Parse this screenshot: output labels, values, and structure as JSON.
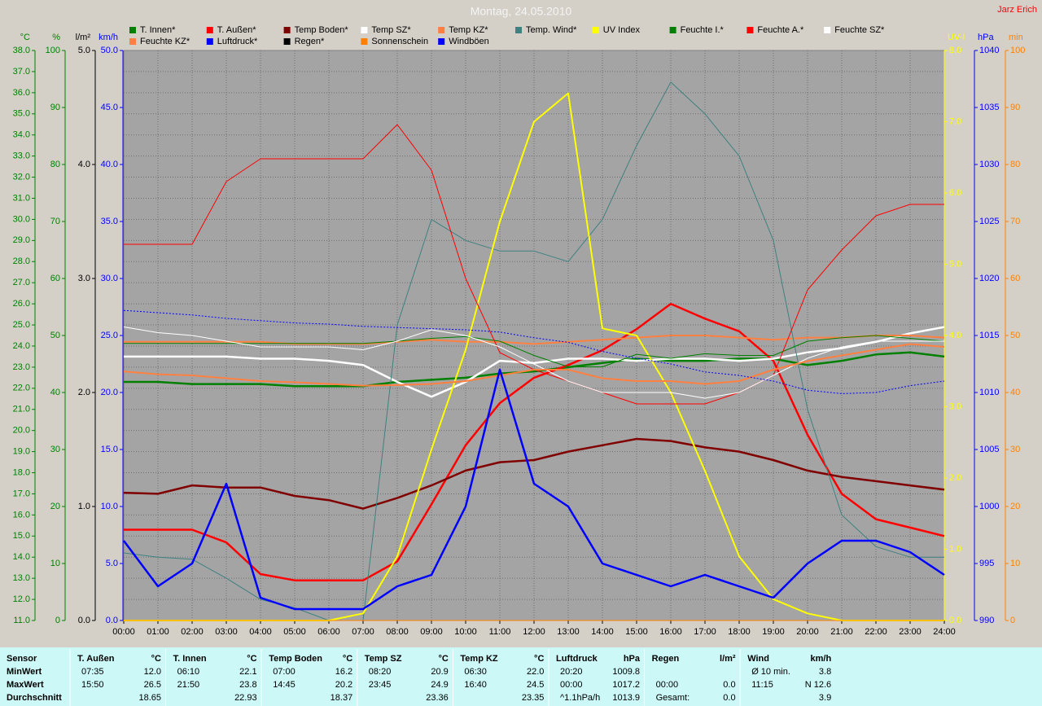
{
  "chart_data": {
    "type": "line",
    "title": "Montag, 24.05.2010",
    "author": "Jarz Erich",
    "background": "#a4a4a4",
    "grid": true,
    "x": [
      0,
      1,
      2,
      3,
      4,
      5,
      6,
      7,
      8,
      9,
      10,
      11,
      12,
      13,
      14,
      15,
      16,
      17,
      18,
      19,
      20,
      21,
      22,
      23,
      24
    ],
    "xlim": [
      0,
      24
    ],
    "xticks": [
      {
        "value": 0,
        "label": "00:00"
      },
      {
        "value": 1,
        "label": "01:00"
      },
      {
        "value": 2,
        "label": "02:00"
      },
      {
        "value": 3,
        "label": "03:00"
      },
      {
        "value": 4,
        "label": "04:00"
      },
      {
        "value": 5,
        "label": "05:00"
      },
      {
        "value": 6,
        "label": "06:00"
      },
      {
        "value": 7,
        "label": "07:00"
      },
      {
        "value": 8,
        "label": "08:00"
      },
      {
        "value": 9,
        "label": "09:00"
      },
      {
        "value": 10,
        "label": "10:00"
      },
      {
        "value": 11,
        "label": "11:00"
      },
      {
        "value": 12,
        "label": "12:00"
      },
      {
        "value": 13,
        "label": "13:00"
      },
      {
        "value": 14,
        "label": "14:00"
      },
      {
        "value": 15,
        "label": "15:00"
      },
      {
        "value": 16,
        "label": "16:00"
      },
      {
        "value": 17,
        "label": "17:00"
      },
      {
        "value": 18,
        "label": "18:00"
      },
      {
        "value": 19,
        "label": "19:00"
      },
      {
        "value": 20,
        "label": "20:00"
      },
      {
        "value": 21,
        "label": "21:00"
      },
      {
        "value": 22,
        "label": "22:00"
      },
      {
        "value": 23,
        "label": "23:00"
      },
      {
        "value": 24,
        "label": "24:00"
      }
    ],
    "axes": [
      {
        "unit": "°C",
        "side": "left",
        "color": "#008000",
        "grid": true,
        "lim": [
          11,
          38
        ],
        "ticks": [
          {
            "value": 11,
            "label": "11.0"
          },
          {
            "value": 12,
            "label": "12.0"
          },
          {
            "value": 13,
            "label": "13.0"
          },
          {
            "value": 14,
            "label": "14.0"
          },
          {
            "value": 15,
            "label": "15.0"
          },
          {
            "value": 16,
            "label": "16.0"
          },
          {
            "value": 17,
            "label": "17.0"
          },
          {
            "value": 18,
            "label": "18.0"
          },
          {
            "value": 19,
            "label": "19.0"
          },
          {
            "value": 20,
            "label": "20.0"
          },
          {
            "value": 21,
            "label": "21.0"
          },
          {
            "value": 22,
            "label": "22.0"
          },
          {
            "value": 23,
            "label": "23.0"
          },
          {
            "value": 24,
            "label": "24.0"
          },
          {
            "value": 25,
            "label": "25.0"
          },
          {
            "value": 26,
            "label": "26.0"
          },
          {
            "value": 27,
            "label": "27.0"
          },
          {
            "value": 28,
            "label": "28.0"
          },
          {
            "value": 29,
            "label": "29.0"
          },
          {
            "value": 30,
            "label": "30.0"
          },
          {
            "value": 31,
            "label": "31.0"
          },
          {
            "value": 32,
            "label": "32.0"
          },
          {
            "value": 33,
            "label": "33.0"
          },
          {
            "value": 34,
            "label": "34.0"
          },
          {
            "value": 35,
            "label": "35.0"
          },
          {
            "value": 36,
            "label": "36.0"
          },
          {
            "value": 37,
            "label": "37.0"
          },
          {
            "value": 38,
            "label": "38.0"
          }
        ]
      },
      {
        "unit": "%",
        "side": "left",
        "color": "#008000",
        "lim": [
          0,
          100
        ],
        "ticks": [
          0,
          10,
          20,
          30,
          40,
          50,
          60,
          70,
          80,
          90,
          100
        ]
      },
      {
        "unit": "l/m²",
        "side": "left",
        "color": "#000000",
        "lim": [
          0,
          5
        ],
        "ticks": [
          {
            "value": 0,
            "label": "0.0"
          },
          {
            "value": 1,
            "label": "1.0"
          },
          {
            "value": 2,
            "label": "2.0"
          },
          {
            "value": 3,
            "label": "3.0"
          },
          {
            "value": 4,
            "label": "4.0"
          },
          {
            "value": 5,
            "label": "5.0"
          }
        ]
      },
      {
        "unit": "km/h",
        "side": "left",
        "color": "#0000ff",
        "lim": [
          0,
          50
        ],
        "ticks": [
          {
            "value": 0,
            "label": "0.0"
          },
          {
            "value": 5,
            "label": "5.0"
          },
          {
            "value": 10,
            "label": "10.0"
          },
          {
            "value": 15,
            "label": "15.0"
          },
          {
            "value": 20,
            "label": "20.0"
          },
          {
            "value": 25,
            "label": "25.0"
          },
          {
            "value": 30,
            "label": "30.0"
          },
          {
            "value": 35,
            "label": "35.0"
          },
          {
            "value": 40,
            "label": "40.0"
          },
          {
            "value": 45,
            "label": "45.0"
          },
          {
            "value": 50,
            "label": "50.0"
          }
        ]
      },
      {
        "unit": "UV-I",
        "side": "right",
        "color": "#ffff00",
        "lim": [
          0,
          8
        ],
        "ticks": [
          {
            "value": 0,
            "label": "0.0"
          },
          {
            "value": 1,
            "label": "1.0"
          },
          {
            "value": 2,
            "label": "2.0"
          },
          {
            "value": 3,
            "label": "3.0"
          },
          {
            "value": 4,
            "label": "4.0"
          },
          {
            "value": 5,
            "label": "5.0"
          },
          {
            "value": 6,
            "label": "6.0"
          },
          {
            "value": 7,
            "label": "7.0"
          },
          {
            "value": 8,
            "label": "8.0"
          }
        ]
      },
      {
        "unit": "hPa",
        "side": "right",
        "color": "#0000ff",
        "lim": [
          990,
          1040
        ],
        "ticks": [
          990,
          995,
          1000,
          1005,
          1010,
          1015,
          1020,
          1025,
          1030,
          1035,
          1040
        ]
      },
      {
        "unit": "min",
        "side": "right",
        "color": "#ff8000",
        "lim": [
          0,
          100
        ],
        "ticks": [
          0,
          10,
          20,
          30,
          40,
          50,
          60,
          70,
          80,
          90,
          100
        ]
      }
    ],
    "series": [
      {
        "name": "T. Innen*",
        "axis": "°C",
        "color": "#008000",
        "line_width": 2.5,
        "values": [
          22.3,
          22.3,
          22.2,
          22.2,
          22.2,
          22.1,
          22.1,
          22.1,
          22.3,
          22.4,
          22.5,
          22.7,
          22.8,
          23.0,
          23.2,
          23.4,
          23.3,
          23.3,
          23.4,
          23.4,
          23.1,
          23.3,
          23.6,
          23.7,
          23.5
        ]
      },
      {
        "name": "T. Außen*",
        "axis": "°C",
        "color": "#ff0000",
        "line_width": 2.5,
        "values": [
          15.3,
          15.3,
          15.3,
          14.7,
          13.2,
          12.9,
          12.9,
          12.9,
          13.8,
          16.5,
          19.3,
          21.3,
          22.5,
          23.1,
          23.8,
          24.8,
          26.0,
          25.3,
          24.7,
          23.3,
          19.8,
          17.0,
          15.8,
          15.4,
          15.0
        ]
      },
      {
        "name": "Temp Boden*",
        "axis": "°C",
        "color": "#800000",
        "line_width": 2.5,
        "values": [
          17.05,
          17.0,
          17.4,
          17.3,
          17.3,
          16.9,
          16.7,
          16.3,
          16.8,
          17.4,
          18.1,
          18.5,
          18.6,
          19.0,
          19.3,
          19.6,
          19.5,
          19.2,
          19.0,
          18.6,
          18.1,
          17.8,
          17.6,
          17.4,
          17.2
        ]
      },
      {
        "name": "Temp SZ*",
        "axis": "°C",
        "color": "#ffffff",
        "line_width": 2.5,
        "values": [
          23.5,
          23.5,
          23.5,
          23.5,
          23.4,
          23.4,
          23.3,
          23.1,
          22.3,
          21.6,
          22.3,
          23.3,
          23.2,
          23.4,
          23.4,
          23.3,
          23.4,
          23.4,
          23.3,
          23.4,
          23.7,
          23.9,
          24.2,
          24.6,
          24.9
        ]
      },
      {
        "name": "Temp KZ*",
        "axis": "°C",
        "color": "#ff8040",
        "line_width": 2,
        "values": [
          24.2,
          24.2,
          24.2,
          24.2,
          24.2,
          24.1,
          24.1,
          24.1,
          24.2,
          24.3,
          24.2,
          24.2,
          24.1,
          24.2,
          24.3,
          24.4,
          24.5,
          24.5,
          24.4,
          24.3,
          24.4,
          24.4,
          24.5,
          24.5,
          24.4
        ]
      },
      {
        "name": "Temp. Wind*",
        "axis": "°C",
        "color": "#408080",
        "line_width": 1,
        "values": [
          14.2,
          14.0,
          13.9,
          13.0,
          12.0,
          11.6,
          11.0,
          11.0,
          25.0,
          30.0,
          29.0,
          28.5,
          28.5,
          28.0,
          30.0,
          33.5,
          36.5,
          35.0,
          33.0,
          29.0,
          21.0,
          16.0,
          14.5,
          14.0,
          14.0
        ]
      },
      {
        "name": "UV Index",
        "axis": "UV-I",
        "color": "#ffff00",
        "line_width": 2,
        "values": [
          0,
          0,
          0,
          0,
          0,
          0,
          0,
          0.1,
          0.9,
          2.4,
          3.8,
          5.6,
          7.0,
          7.4,
          4.1,
          4.0,
          3.2,
          2.1,
          0.9,
          0.3,
          0.1,
          0,
          0,
          0,
          0
        ]
      },
      {
        "name": "Feuchte I.*",
        "axis": "%",
        "color": "#008000",
        "line_width": 1,
        "values": [
          48.6,
          48.6,
          48.6,
          48.6,
          48.6,
          48.6,
          48.6,
          48.6,
          49.0,
          49.5,
          49.8,
          49.0,
          46.5,
          44.5,
          44.5,
          46.7,
          46.0,
          46.8,
          46.5,
          46.5,
          49.0,
          49.6,
          50.0,
          49.5,
          49.0
        ]
      },
      {
        "name": "Feuchte A.*",
        "axis": "%",
        "color": "#ff0000",
        "line_width": 1,
        "values": [
          66,
          66,
          66,
          77,
          81,
          81,
          81,
          81,
          87,
          79,
          60,
          47,
          44,
          42,
          40,
          38,
          38,
          38,
          40,
          43,
          58,
          65,
          71,
          73,
          73
        ]
      },
      {
        "name": "Feuchte SZ*",
        "axis": "%",
        "color": "#ffffff",
        "line_width": 1,
        "values": [
          51.5,
          50.5,
          50,
          49,
          48,
          48,
          48,
          47.5,
          49,
          51,
          50,
          48,
          45,
          42,
          40,
          40,
          40,
          39,
          40,
          43,
          46,
          48,
          49,
          49,
          49
        ]
      },
      {
        "name": "Feuchte KZ*",
        "axis": "%",
        "color": "#ff8040",
        "line_width": 2,
        "values": [
          43.7,
          43.2,
          43,
          42.5,
          42,
          41.8,
          41.5,
          41.2,
          41.3,
          41.5,
          42,
          43,
          44,
          44,
          42.5,
          42,
          42,
          41.5,
          42,
          44,
          45.5,
          46.5,
          47.5,
          48.5,
          48
        ]
      },
      {
        "name": "Luftdruck*",
        "axis": "hPa",
        "color": "#0000ff",
        "line_width": 1,
        "dash": true,
        "values": [
          1017.2,
          1017,
          1016.8,
          1016.5,
          1016.3,
          1016.1,
          1016,
          1015.8,
          1015.7,
          1015.6,
          1015.5,
          1015.3,
          1014.8,
          1014.4,
          1013.6,
          1013,
          1012.5,
          1011.8,
          1011.5,
          1011,
          1010.2,
          1009.9,
          1010,
          1010.6,
          1011
        ]
      },
      {
        "name": "Regen*",
        "axis": "l/m²",
        "color": "#000000",
        "line_width": 1,
        "values": [
          0,
          0,
          0,
          0,
          0,
          0,
          0,
          0,
          0,
          0,
          0,
          0,
          0,
          0,
          0,
          0,
          0,
          0,
          0,
          0,
          0,
          0,
          0,
          0,
          0
        ]
      },
      {
        "name": "Sonnenschein",
        "axis": "min",
        "color": "#ff8000",
        "line_width": 1,
        "values": [
          0,
          0,
          0,
          0,
          0,
          0,
          0,
          0,
          0,
          0,
          0,
          0,
          0,
          0,
          0,
          0,
          0,
          0,
          0,
          0,
          0,
          0,
          0,
          0,
          0
        ]
      },
      {
        "name": "Windböen",
        "axis": "km/h",
        "color": "#0000ff",
        "line_width": 2.5,
        "values": [
          7,
          3,
          5,
          12,
          2,
          1,
          1,
          1,
          3,
          4,
          10,
          22,
          12,
          10,
          5,
          4,
          3,
          4,
          3,
          2,
          5,
          7,
          7,
          6,
          4
        ]
      }
    ]
  },
  "table": {
    "row_labels": [
      "Sensor",
      "MinWert",
      "MaxWert",
      "Durchschnitt"
    ],
    "columns": [
      {
        "name": "T. Außen",
        "unit": "°C",
        "rows": [
          {
            "time": "07:35",
            "value": "12.0"
          },
          {
            "time": "15:50",
            "value": "26.5"
          },
          {
            "value": "18.65"
          }
        ]
      },
      {
        "name": "T. Innen",
        "unit": "°C",
        "rows": [
          {
            "time": "06:10",
            "value": "22.1"
          },
          {
            "time": "21:50",
            "value": "23.8"
          },
          {
            "value": "22.93"
          }
        ]
      },
      {
        "name": "Temp Boden",
        "unit": "°C",
        "rows": [
          {
            "time": "07:00",
            "value": "16.2"
          },
          {
            "time": "14:45",
            "value": "20.2"
          },
          {
            "value": "18.37"
          }
        ]
      },
      {
        "name": "Temp SZ",
        "unit": "°C",
        "rows": [
          {
            "time": "08:20",
            "value": "20.9"
          },
          {
            "time": "23:45",
            "value": "24.9"
          },
          {
            "value": "23.36"
          }
        ]
      },
      {
        "name": "Temp KZ",
        "unit": "°C",
        "rows": [
          {
            "time": "06:30",
            "value": "22.0"
          },
          {
            "time": "16:40",
            "value": "24.5"
          },
          {
            "value": "23.35"
          }
        ]
      },
      {
        "name": "Luftdruck",
        "unit": "hPa",
        "rows": [
          {
            "time": "20:20",
            "value": "1009.8"
          },
          {
            "time": "00:00",
            "value": "1017.2"
          },
          {
            "time": "^1.1hPa/h",
            "value": "1013.9"
          }
        ]
      },
      {
        "name": "Regen",
        "unit": "l/m²",
        "rows": [
          null,
          {
            "time": "00:00",
            "value": "0.0"
          },
          {
            "time": "Gesamt:",
            "value": "0.0"
          }
        ]
      },
      {
        "name": "Wind",
        "unit": "km/h",
        "rows": [
          {
            "time": "Ø 10 min.",
            "value": "3.8"
          },
          {
            "time": "11:15",
            "value": "N 12.6"
          },
          {
            "value": "3.9"
          }
        ]
      }
    ]
  }
}
